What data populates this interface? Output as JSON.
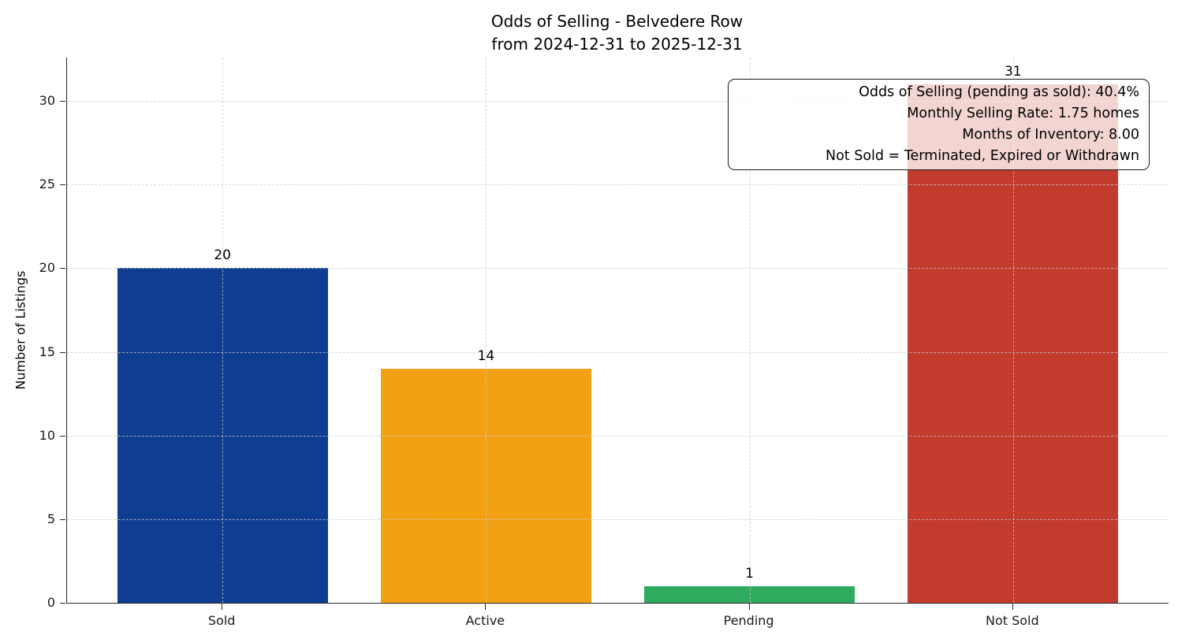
{
  "chart_data": {
    "type": "bar",
    "title_lines": [
      "Odds of Selling - Belvedere Row",
      "from 2024-12-31 to 2025-12-31"
    ],
    "categories": [
      "Sold",
      "Active",
      "Pending",
      "Not Sold"
    ],
    "values": [
      20,
      14,
      1,
      31
    ],
    "value_labels": [
      "20",
      "14",
      "1",
      "31"
    ],
    "bar_colors": [
      "#0f3d91",
      "#f2a113",
      "#2eab5e",
      "#c23b2c"
    ],
    "xlabel": "",
    "ylabel": "Number of Listings",
    "ylim": [
      0,
      32.6
    ],
    "yticks": [
      0,
      5,
      10,
      15,
      20,
      25,
      30
    ],
    "grid": {
      "style": "dashed",
      "axes": "both",
      "color": "#c8c8c8",
      "drawn_over_bars": true
    },
    "legend": null,
    "annotation": {
      "position": "top-right",
      "lines": [
        "Odds of Selling (pending as sold): 40.4%",
        "Monthly Selling Rate: 1.75 homes",
        "Months of Inventory: 8.00",
        "Not Sold = Terminated, Expired or Withdrawn"
      ]
    }
  }
}
